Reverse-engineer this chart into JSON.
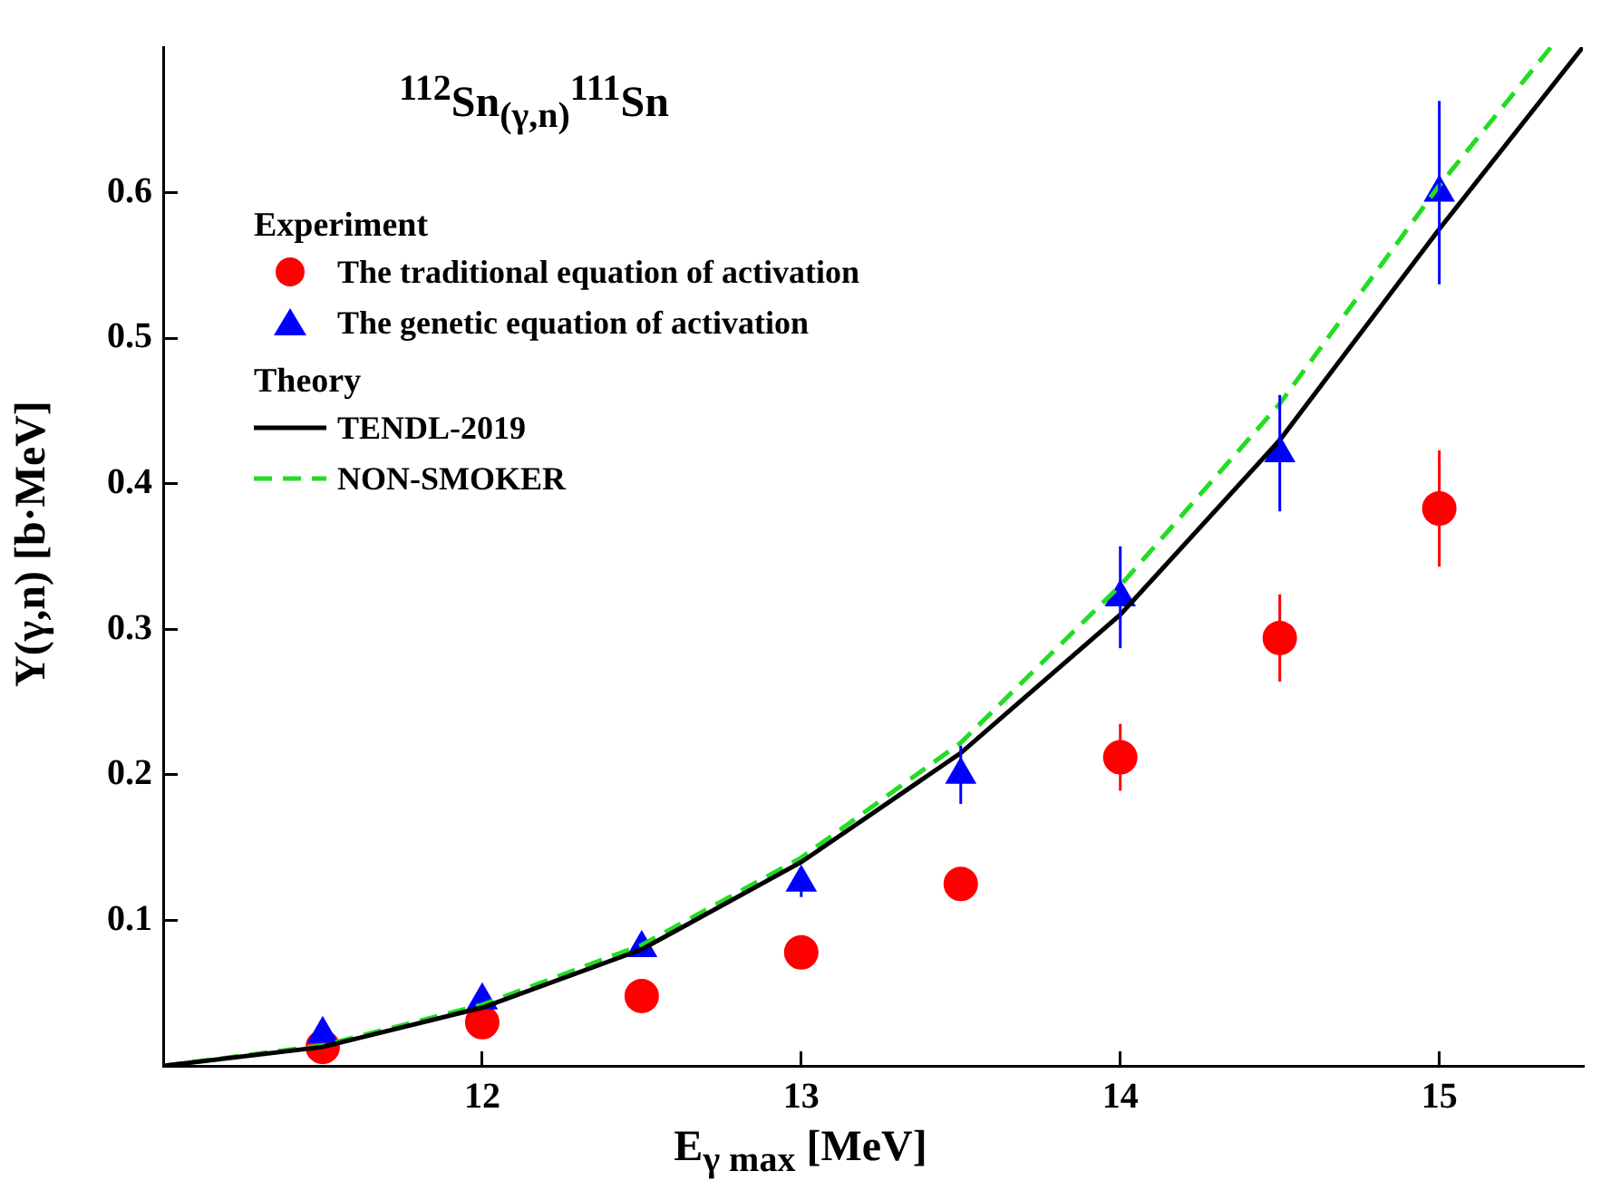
{
  "chart_data": {
    "type": "scatter",
    "title": "$^{112}$Sn$_{(γ,n)}$$^{111}$Sn",
    "xlabel": "E$_{γ max}$ [MeV]",
    "ylabel": "Y(γ,n) [b·MeV]",
    "legend_title": "Experiment",
    "annotations": [
      "Theory"
    ],
    "xlim": [
      11,
      15.45
    ],
    "xticks": [
      12,
      13,
      14,
      15
    ],
    "ylim": [
      0,
      0.7
    ],
    "yticks": [
      0.1,
      0.2,
      0.3,
      0.4,
      0.5,
      0.6
    ],
    "grid": false,
    "legend": "top left",
    "series": [
      {
        "name": "The traditional equation of activation",
        "type": "scatter",
        "marker": "circle",
        "color": "#ff0000",
        "x": [
          11.5,
          12,
          12.5,
          13,
          13.5,
          14,
          14.5,
          15
        ],
        "values": [
          0.013,
          0.03,
          0.048,
          0.078,
          0.125,
          0.212,
          0.294,
          0.383
        ],
        "errors": [
          null,
          null,
          null,
          null,
          0.01,
          0.023,
          0.03,
          0.04
        ]
      },
      {
        "name": "The genetic equation of activation",
        "type": "scatter",
        "marker": "triangle",
        "color": "#0000ff",
        "x": [
          11.5,
          12,
          12.5,
          13,
          13.5,
          14,
          14.5,
          15
        ],
        "values": [
          0.022,
          0.045,
          0.081,
          0.126,
          0.2,
          0.322,
          0.421,
          0.6
        ],
        "errors": [
          null,
          null,
          null,
          0.01,
          0.02,
          0.035,
          0.04,
          0.063
        ]
      },
      {
        "name": "TENDL-2019",
        "type": "line",
        "marker": "none",
        "line_style": "solid",
        "color": "#000000",
        "x": [
          11,
          11.5,
          12,
          12.5,
          13,
          13.5,
          14,
          14.5,
          15,
          15.45
        ],
        "values": [
          0,
          0.013,
          0.04,
          0.08,
          0.14,
          0.215,
          0.31,
          0.43,
          0.575,
          0.7
        ]
      },
      {
        "name": "NON-SMOKER",
        "type": "line",
        "marker": "none",
        "line_style": "dashed",
        "color": "#22dd22",
        "x": [
          11,
          11.5,
          12,
          12.5,
          13,
          13.5,
          14,
          14.5,
          15,
          15.35
        ],
        "values": [
          0,
          0.014,
          0.042,
          0.083,
          0.143,
          0.222,
          0.33,
          0.455,
          0.605,
          0.7
        ]
      }
    ]
  }
}
